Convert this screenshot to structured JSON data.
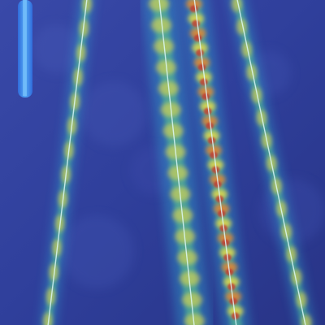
{
  "image": {
    "kind": "heatmap-overlay-photo",
    "colormap": [
      "#2a2f8f",
      "#3f5fe0",
      "#31b6d8",
      "#5ed08c",
      "#e6d94a",
      "#e9832f",
      "#c7332c"
    ],
    "ground_color": "#2f3c93"
  },
  "overlay": {
    "stripes": [
      {
        "name": "stripe-left",
        "intensity": 0.45
      },
      {
        "name": "stripe-center-left",
        "intensity": 0.55
      },
      {
        "name": "stripe-center",
        "intensity": 0.95
      },
      {
        "name": "stripe-right",
        "intensity": 0.45
      }
    ]
  }
}
